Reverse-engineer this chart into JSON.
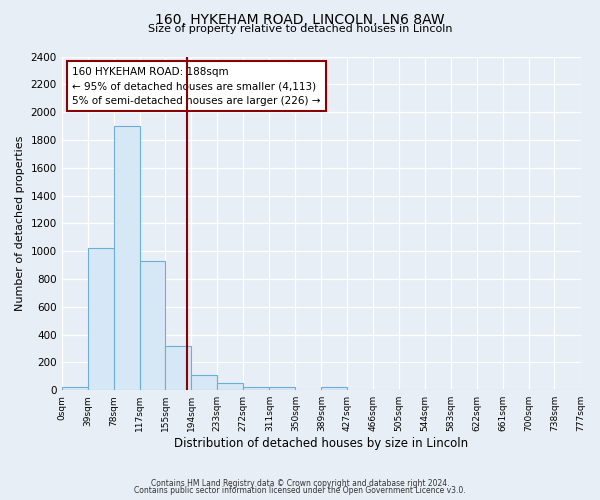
{
  "title1": "160, HYKEHAM ROAD, LINCOLN, LN6 8AW",
  "title2": "Size of property relative to detached houses in Lincoln",
  "xlabel": "Distribution of detached houses by size in Lincoln",
  "ylabel": "Number of detached properties",
  "bin_edges": [
    0,
    39,
    78,
    117,
    155,
    194,
    233,
    272,
    311,
    350,
    389,
    427,
    466,
    505,
    544,
    583,
    622,
    661,
    700,
    738,
    777
  ],
  "bar_heights": [
    20,
    1025,
    1900,
    930,
    320,
    110,
    50,
    25,
    20,
    0,
    20,
    0,
    0,
    0,
    0,
    0,
    0,
    0,
    0,
    0
  ],
  "bar_facecolor": "#d6e8f5",
  "bar_edgecolor": "#6baed6",
  "vline_x": 188,
  "vline_color": "#8b0000",
  "annotation_line1": "160 HYKEHAM ROAD: 188sqm",
  "annotation_line2": "← 95% of detached houses are smaller (4,113)",
  "annotation_line3": "5% of semi-detached houses are larger (226) →",
  "annotation_box_edgecolor": "#8b0000",
  "ylim": [
    0,
    2400
  ],
  "yticks": [
    0,
    200,
    400,
    600,
    800,
    1000,
    1200,
    1400,
    1600,
    1800,
    2000,
    2200,
    2400
  ],
  "bg_color": "#e8eef5",
  "plot_bg_color": "#e8eef5",
  "grid_color": "#ffffff",
  "footnote1": "Contains HM Land Registry data © Crown copyright and database right 2024.",
  "footnote2": "Contains public sector information licensed under the Open Government Licence v3.0."
}
